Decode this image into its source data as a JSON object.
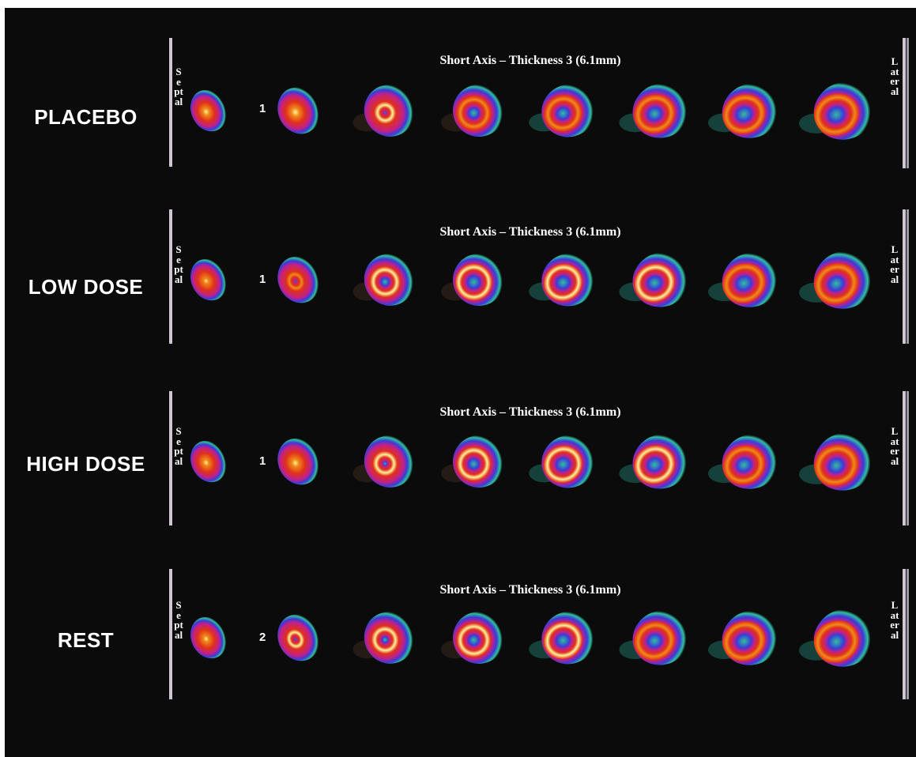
{
  "rows": [
    {
      "label": "PLACEBO",
      "title": "Short Axis – Thickness 3 (6.1mm)",
      "septal": "Septal",
      "lateral": "Lateral",
      "slice_index": "1",
      "hole_sizes": [
        0,
        0,
        0.05,
        0.25,
        0.28,
        0.3,
        0.32,
        0.32
      ],
      "intensity": [
        0.85,
        0.9,
        0.85,
        0.65,
        0.5,
        0.45,
        0.4,
        0.38
      ]
    },
    {
      "label": "LOW DOSE",
      "title": "Short Axis – Thickness 3 (6.1mm)",
      "septal": "Septal",
      "lateral": "Lateral",
      "slice_index": "1",
      "hole_sizes": [
        0,
        0.05,
        0.2,
        0.3,
        0.3,
        0.3,
        0.32,
        0.3
      ],
      "intensity": [
        0.6,
        0.7,
        0.9,
        0.95,
        0.9,
        0.85,
        0.8,
        0.75
      ]
    },
    {
      "label": "HIGH DOSE",
      "title": "Short Axis – Thickness 3 (6.1mm)",
      "septal": "Septal",
      "lateral": "Lateral",
      "slice_index": "1",
      "hole_sizes": [
        0,
        0,
        0.1,
        0.25,
        0.3,
        0.3,
        0.3,
        0.3
      ],
      "intensity": [
        0.75,
        0.8,
        0.95,
        0.95,
        0.9,
        0.85,
        0.8,
        0.7
      ]
    },
    {
      "label": "REST",
      "title": "Short Axis – Thickness 3 (6.1mm)",
      "septal": "Septal",
      "lateral": "Lateral",
      "slice_index": "2",
      "hole_sizes": [
        0,
        0.05,
        0.15,
        0.25,
        0.3,
        0.3,
        0.32,
        0.32
      ],
      "intensity": [
        0.7,
        0.9,
        0.95,
        0.9,
        0.85,
        0.8,
        0.75,
        0.7
      ]
    }
  ],
  "colors": {
    "background": "#0b0b0b",
    "bar": "#cfc7d4",
    "text": "#ffffff",
    "outer": "#2fbf9f",
    "blue": "#3b3bd8",
    "magenta": "#c0208a",
    "red": "#e0301a",
    "orange": "#f08a1a",
    "yellow": "#fff29a"
  }
}
